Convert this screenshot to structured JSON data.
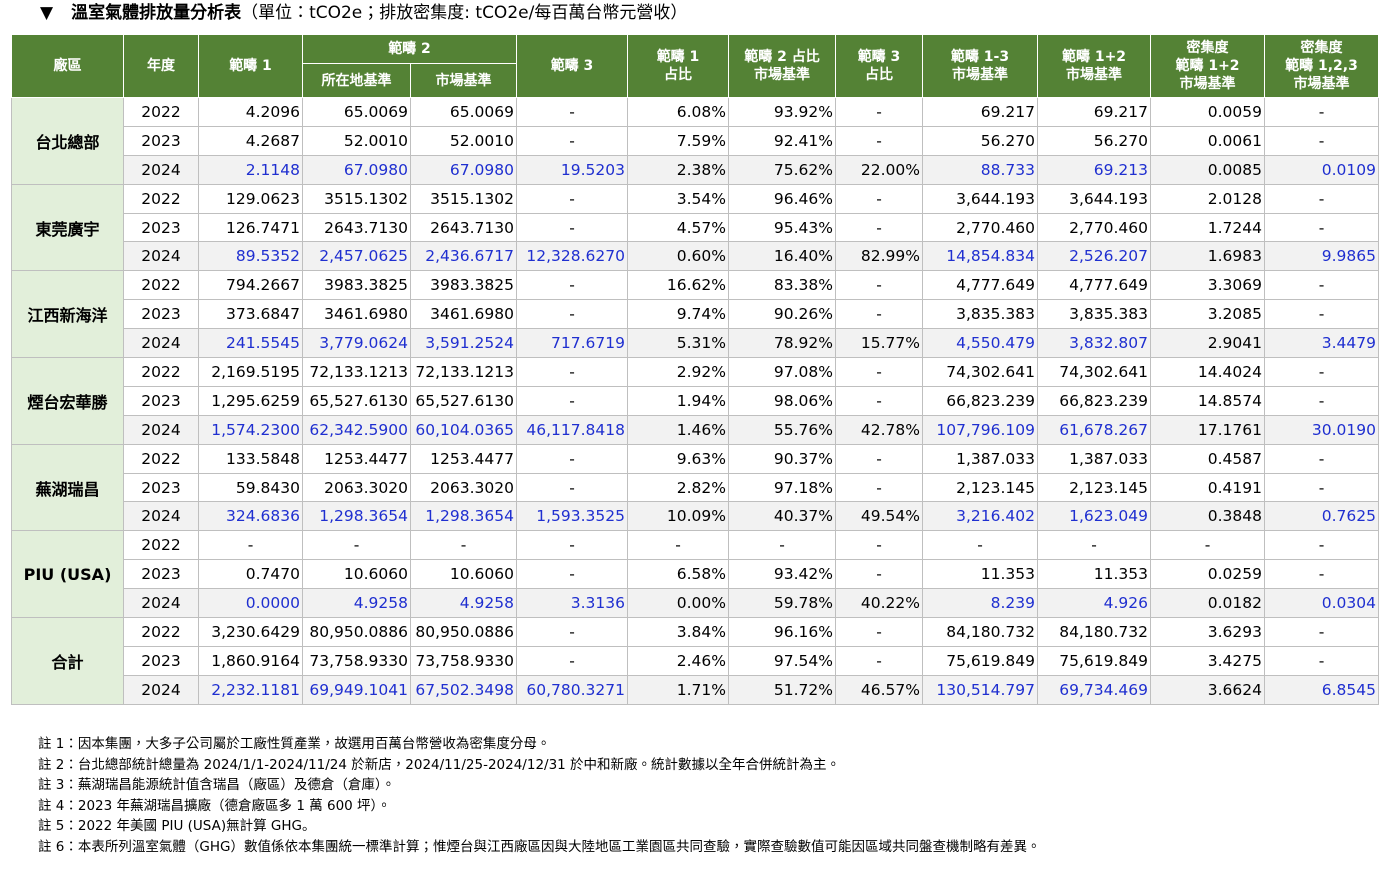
{
  "header": {
    "marker": "▼",
    "title": "溫室氣體排放量分析表",
    "unit": "（單位：tCO2e；排放密集度: tCO2e/每百萬台幣元營收）"
  },
  "table": {
    "head_top": [
      "廠區",
      "年度",
      "範疇 1",
      "範疇 2",
      "範疇 3",
      "範疇 1\n占比",
      "範疇 2 占比\n市場基準",
      "範疇 3\n占比",
      "範疇 1-3\n市場基準",
      "範疇 1+2\n市場基準",
      "密集度\n範疇 1+2\n市場基準",
      "密集度\n範疇 1,2,3\n市場基準"
    ],
    "head_sub": [
      "所在地基準",
      "市場基準"
    ],
    "groups": [
      {
        "site": "台北總部",
        "rows": [
          [
            "2022",
            "4.2096",
            "65.0069",
            "65.0069",
            "-",
            "6.08%",
            "93.92%",
            "-",
            "69.217",
            "69.217",
            "0.0059",
            "-"
          ],
          [
            "2023",
            "4.2687",
            "52.0010",
            "52.0010",
            "-",
            "7.59%",
            "92.41%",
            "-",
            "56.270",
            "56.270",
            "0.0061",
            "-"
          ],
          [
            "2024",
            "2.1148",
            "67.0980",
            "67.0980",
            "19.5203",
            "2.38%",
            "75.62%",
            "22.00%",
            "88.733",
            "69.213",
            "0.0085",
            "0.0109"
          ]
        ]
      },
      {
        "site": "東莞廣宇",
        "rows": [
          [
            "2022",
            "129.0623",
            "3515.1302",
            "3515.1302",
            "-",
            "3.54%",
            "96.46%",
            "-",
            "3,644.193",
            "3,644.193",
            "2.0128",
            "-"
          ],
          [
            "2023",
            "126.7471",
            "2643.7130",
            "2643.7130",
            "-",
            "4.57%",
            "95.43%",
            "-",
            "2,770.460",
            "2,770.460",
            "1.7244",
            "-"
          ],
          [
            "2024",
            "89.5352",
            "2,457.0625",
            "2,436.6717",
            "12,328.6270",
            "0.60%",
            "16.40%",
            "82.99%",
            "14,854.834",
            "2,526.207",
            "1.6983",
            "9.9865"
          ]
        ]
      },
      {
        "site": "江西新海洋",
        "rows": [
          [
            "2022",
            "794.2667",
            "3983.3825",
            "3983.3825",
            "-",
            "16.62%",
            "83.38%",
            "-",
            "4,777.649",
            "4,777.649",
            "3.3069",
            "-"
          ],
          [
            "2023",
            "373.6847",
            "3461.6980",
            "3461.6980",
            "-",
            "9.74%",
            "90.26%",
            "-",
            "3,835.383",
            "3,835.383",
            "3.2085",
            "-"
          ],
          [
            "2024",
            "241.5545",
            "3,779.0624",
            "3,591.2524",
            "717.6719",
            "5.31%",
            "78.92%",
            "15.77%",
            "4,550.479",
            "3,832.807",
            "2.9041",
            "3.4479"
          ]
        ]
      },
      {
        "site": "煙台宏華勝",
        "rows": [
          [
            "2022",
            "2,169.5195",
            "72,133.1213",
            "72,133.1213",
            "-",
            "2.92%",
            "97.08%",
            "-",
            "74,302.641",
            "74,302.641",
            "14.4024",
            "-"
          ],
          [
            "2023",
            "1,295.6259",
            "65,527.6130",
            "65,527.6130",
            "-",
            "1.94%",
            "98.06%",
            "-",
            "66,823.239",
            "66,823.239",
            "14.8574",
            "-"
          ],
          [
            "2024",
            "1,574.2300",
            "62,342.5900",
            "60,104.0365",
            "46,117.8418",
            "1.46%",
            "55.76%",
            "42.78%",
            "107,796.109",
            "61,678.267",
            "17.1761",
            "30.0190"
          ]
        ]
      },
      {
        "site": "蕪湖瑞昌",
        "rows": [
          [
            "2022",
            "133.5848",
            "1253.4477",
            "1253.4477",
            "-",
            "9.63%",
            "90.37%",
            "-",
            "1,387.033",
            "1,387.033",
            "0.4587",
            "-"
          ],
          [
            "2023",
            "59.8430",
            "2063.3020",
            "2063.3020",
            "-",
            "2.82%",
            "97.18%",
            "-",
            "2,123.145",
            "2,123.145",
            "0.4191",
            "-"
          ],
          [
            "2024",
            "324.6836",
            "1,298.3654",
            "1,298.3654",
            "1,593.3525",
            "10.09%",
            "40.37%",
            "49.54%",
            "3,216.402",
            "1,623.049",
            "0.3848",
            "0.7625"
          ]
        ]
      },
      {
        "site": "PIU (USA)",
        "rows": [
          [
            "2022",
            "-",
            "-",
            "-",
            "-",
            "-",
            "-",
            "-",
            "-",
            "-",
            "-",
            "-"
          ],
          [
            "2023",
            "0.7470",
            "10.6060",
            "10.6060",
            "-",
            "6.58%",
            "93.42%",
            "-",
            "11.353",
            "11.353",
            "0.0259",
            "-"
          ],
          [
            "2024",
            "0.0000",
            "4.9258",
            "4.9258",
            "3.3136",
            "0.00%",
            "59.78%",
            "40.22%",
            "8.239",
            "4.926",
            "0.0182",
            "0.0304"
          ]
        ]
      },
      {
        "site": "合計",
        "rows": [
          [
            "2022",
            "3,230.6429",
            "80,950.0886",
            "80,950.0886",
            "-",
            "3.84%",
            "96.16%",
            "-",
            "84,180.732",
            "84,180.732",
            "3.6293",
            "-"
          ],
          [
            "2023",
            "1,860.9164",
            "73,758.9330",
            "73,758.9330",
            "-",
            "2.46%",
            "97.54%",
            "-",
            "75,619.849",
            "75,619.849",
            "3.4275",
            "-"
          ],
          [
            "2024",
            "2,232.1181",
            "69,949.1041",
            "67,502.3498",
            "60,780.3271",
            "1.71%",
            "51.72%",
            "46.57%",
            "130,514.797",
            "69,734.469",
            "3.6624",
            "6.8545"
          ]
        ]
      }
    ]
  },
  "notes": [
    "註 1：因本集團，大多子公司屬於工廠性質產業，故選用百萬台幣營收為密集度分母。",
    "註 2：台北總部統計總量為 2024/1/1-2024/11/24 於新店，2024/11/25-2024/12/31 於中和新廠。統計數據以全年合併統計為主。",
    "註 3：蕪湖瑞昌能源統計值含瑞昌（廠區）及德倉（倉庫）。",
    "註 4：2023 年蕪湖瑞昌擴廠（德倉廠區多 1 萬 600 坪）。",
    "註 5：2022 年美國 PIU (USA)無計算 GHG。",
    "註 6：本表所列溫室氣體（GHG）數值係依本集團統一標準計算；惟煙台與江西廠區因與大陸地區工業園區共同查驗，實際查驗數值可能因區域共同盤查機制略有差異。"
  ]
}
